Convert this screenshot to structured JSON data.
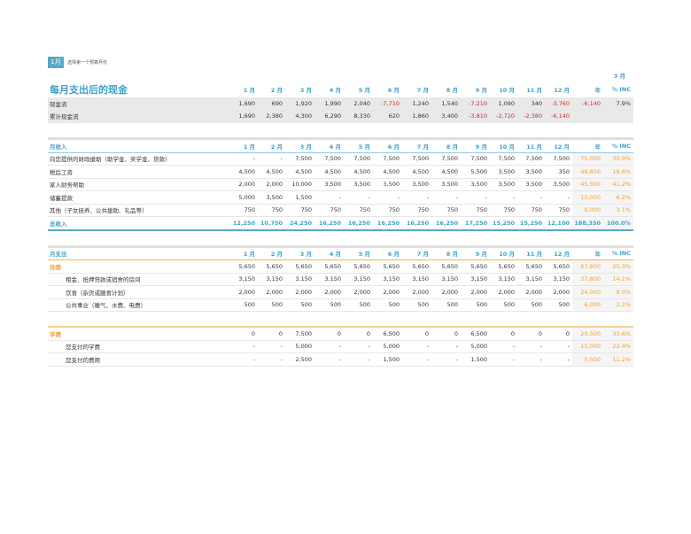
{
  "selector": {
    "month_badge": "1月",
    "hint": "选择第一个预算月份",
    "selected_month": "3 月"
  },
  "title": "每月支出后的现金",
  "months": [
    "1 月",
    "2 月",
    "3 月",
    "4 月",
    "5 月",
    "6 月",
    "7 月",
    "8 月",
    "9 月",
    "10 月",
    "11 月",
    "12 月"
  ],
  "year_label": "年",
  "pct_label": "% INC",
  "cashflow": {
    "rows": [
      {
        "label": "现金流",
        "values": [
          "1,690",
          "690",
          "1,920",
          "1,990",
          "2,040",
          "-7,710",
          "1,240",
          "1,540",
          "-7,210",
          "1,090",
          "340",
          "-3,760"
        ],
        "year": "-6,140",
        "pct": "7.9%"
      },
      {
        "label": "累计现金流",
        "values": [
          "1,690",
          "2,380",
          "4,300",
          "6,290",
          "8,330",
          "620",
          "1,860",
          "3,400",
          "-3,810",
          "-2,720",
          "-2,380",
          "-6,140"
        ],
        "year": "",
        "pct": ""
      }
    ]
  },
  "income": {
    "header": "月收入",
    "rows": [
      {
        "label": "向您提供的财政援助（助学金、奖学金、贷款）",
        "values": [
          "-",
          "-",
          "7,500",
          "7,500",
          "7,500",
          "7,500",
          "7,500",
          "7,500",
          "7,500",
          "7,500",
          "7,500",
          "7,500"
        ],
        "year": "75,000",
        "pct": "30.9%"
      },
      {
        "label": "税后工资",
        "values": [
          "4,500",
          "4,500",
          "4,500",
          "4,500",
          "4,500",
          "4,500",
          "4,500",
          "4,500",
          "5,500",
          "3,500",
          "3,500",
          "350"
        ],
        "year": "48,850",
        "pct": "18.6%"
      },
      {
        "label": "家人财务帮助",
        "values": [
          "2,000",
          "2,000",
          "10,000",
          "3,500",
          "3,500",
          "3,500",
          "3,500",
          "3,500",
          "3,500",
          "3,500",
          "3,500",
          "3,500"
        ],
        "year": "45,500",
        "pct": "41.2%"
      },
      {
        "label": "储蓄提款",
        "values": [
          "5,000",
          "3,500",
          "1,500",
          "-",
          "-",
          "-",
          "-",
          "-",
          "-",
          "-",
          "-",
          "-"
        ],
        "year": "10,000",
        "pct": "6.2%"
      },
      {
        "label": "其他（子女抚养、公共援助、礼品等）",
        "values": [
          "750",
          "750",
          "750",
          "750",
          "750",
          "750",
          "750",
          "750",
          "750",
          "750",
          "750",
          "750"
        ],
        "year": "9,000",
        "pct": "3.1%"
      }
    ],
    "total": {
      "label": "总收入",
      "values": [
        "12,250",
        "10,750",
        "24,250",
        "16,250",
        "16,250",
        "16,250",
        "16,250",
        "16,250",
        "17,250",
        "15,250",
        "15,250",
        "12,100"
      ],
      "year": "188,350",
      "pct": "100.0%"
    }
  },
  "expense": {
    "header": "月支出",
    "housing": {
      "label": "住宿",
      "values": [
        "5,650",
        "5,650",
        "5,650",
        "5,650",
        "5,650",
        "5,650",
        "5,650",
        "5,650",
        "5,650",
        "5,650",
        "5,650",
        "5,650"
      ],
      "year": "67,800",
      "pct": "25.3%",
      "rows": [
        {
          "label": "租金、抵押贷款或宿舍的房间",
          "values": [
            "3,150",
            "3,150",
            "3,150",
            "3,150",
            "3,150",
            "3,150",
            "3,150",
            "3,150",
            "3,150",
            "3,150",
            "3,150",
            "3,150"
          ],
          "year": "37,800",
          "pct": "14.1%"
        },
        {
          "label": "饮食（杂货或膳食计划）",
          "values": [
            "2,000",
            "2,000",
            "2,000",
            "2,000",
            "2,000",
            "2,000",
            "2,000",
            "2,000",
            "2,000",
            "2,000",
            "2,000",
            "2,000"
          ],
          "year": "24,000",
          "pct": "9.0%"
        },
        {
          "label": "公共事业（暖气、水费、电费）",
          "values": [
            "500",
            "500",
            "500",
            "500",
            "500",
            "500",
            "500",
            "500",
            "500",
            "500",
            "500",
            "500"
          ],
          "year": "6,000",
          "pct": "2.2%"
        }
      ]
    },
    "tuition": {
      "label": "学费",
      "values": [
        "0",
        "0",
        "7,500",
        "0",
        "0",
        "6,500",
        "0",
        "0",
        "6,500",
        "0",
        "0",
        "0"
      ],
      "year": "20,500",
      "pct": "33.6%",
      "rows": [
        {
          "label": "您支付的学费",
          "values": [
            "-",
            "-",
            "5,000",
            "-",
            "-",
            "5,000",
            "-",
            "-",
            "5,000",
            "-",
            "-",
            "-"
          ],
          "year": "15,000",
          "pct": "22.4%"
        },
        {
          "label": "您支付的费用",
          "values": [
            "-",
            "-",
            "2,500",
            "-",
            "-",
            "1,500",
            "-",
            "-",
            "1,500",
            "-",
            "-",
            "-"
          ],
          "year": "5,500",
          "pct": "11.2%"
        }
      ]
    }
  },
  "colors": {
    "accent": "#3fa0c8",
    "orange": "#f0a030",
    "negative": "#d9252e"
  }
}
